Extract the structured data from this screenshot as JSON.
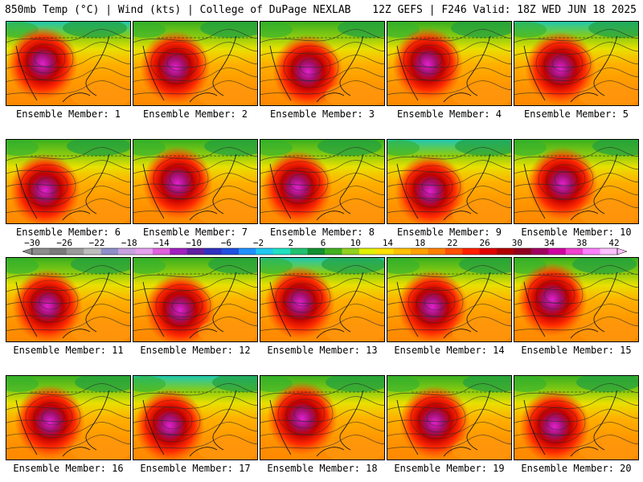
{
  "header": {
    "left": "850mb Temp (°C) | Wind (kts) | College of DuPage NEXLAB",
    "right": "12Z GEFS | F246 Valid: 18Z WED JUN 18 2025"
  },
  "members": [
    "Ensemble Member: 1",
    "Ensemble Member: 2",
    "Ensemble Member: 3",
    "Ensemble Member: 4",
    "Ensemble Member: 5",
    "Ensemble Member: 6",
    "Ensemble Member: 7",
    "Ensemble Member: 8",
    "Ensemble Member: 9",
    "Ensemble Member: 10",
    "Ensemble Member: 11",
    "Ensemble Member: 12",
    "Ensemble Member: 13",
    "Ensemble Member: 14",
    "Ensemble Member: 15",
    "Ensemble Member: 16",
    "Ensemble Member: 17",
    "Ensemble Member: 18",
    "Ensemble Member: 19",
    "Ensemble Member: 20"
  ],
  "colorbar": {
    "labels": [
      "-30",
      "-26",
      "-22",
      "-18",
      "-14",
      "-10",
      "-6",
      "-2",
      "2",
      "6",
      "10",
      "14",
      "18",
      "22",
      "26",
      "30",
      "34",
      "38",
      "42"
    ],
    "colors": [
      "#8c8c8c",
      "#7a7a7a",
      "#9a9a9a",
      "#bdbdbd",
      "#8e8ec8",
      "#c8a0e0",
      "#e6a0f0",
      "#e060e0",
      "#a020c0",
      "#6020a0",
      "#3030c0",
      "#2050e0",
      "#1f90ff",
      "#20c8f0",
      "#20e0c0",
      "#20c070",
      "#109030",
      "#40b020",
      "#90d020",
      "#e0f000",
      "#ffe000",
      "#ffc000",
      "#ffa000",
      "#ff8000",
      "#ff5000",
      "#ff2000",
      "#e00000",
      "#b00000",
      "#900020",
      "#a00060",
      "#d000a0",
      "#f040d0",
      "#ff80ff",
      "#ffc0ff"
    ]
  }
}
